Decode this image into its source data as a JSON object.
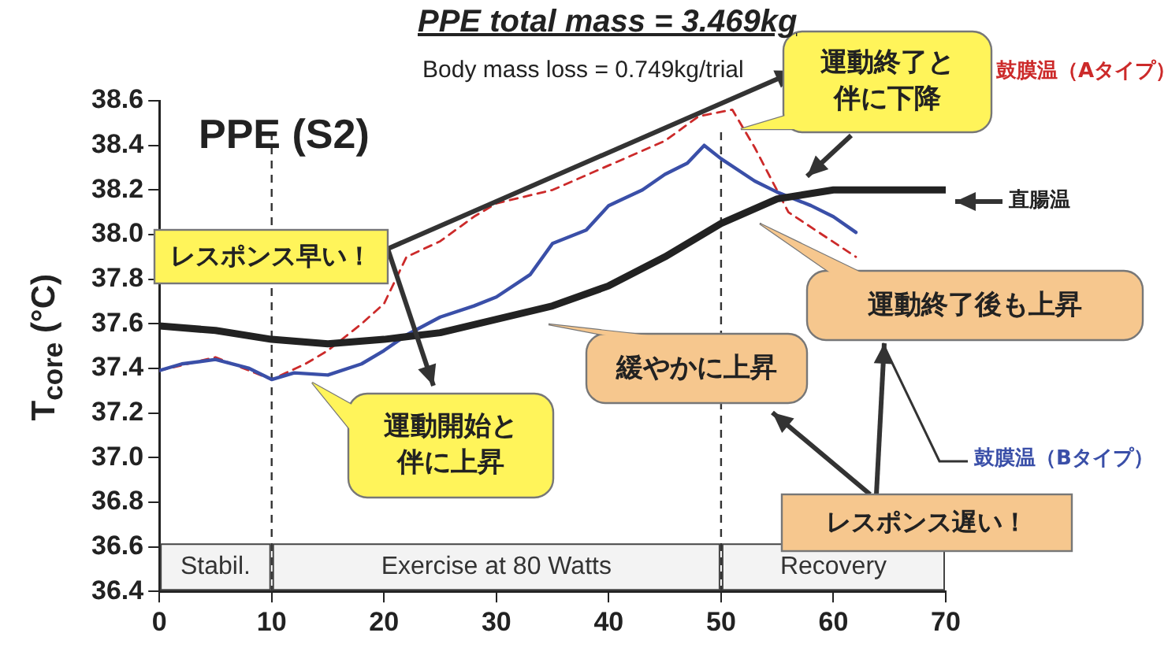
{
  "chart_data": {
    "type": "line",
    "title": "PPE total mass = 3.469kg",
    "subtitle": "Body mass loss = 0.749kg/trial",
    "ylabel": "T$_{core}$ (°C)",
    "xlim": [
      0,
      70
    ],
    "xticks": [
      0,
      10,
      20,
      30,
      40,
      50,
      60,
      70
    ],
    "ylim": [
      36.4,
      38.6
    ],
    "yticks": [
      36.4,
      36.6,
      36.8,
      {
        "value": 37,
        "label": "37.0"
      },
      37.2,
      37.4,
      37.6,
      37.8,
      {
        "value": 38,
        "label": "38.0"
      },
      38.2,
      38.4,
      38.6
    ],
    "grid": false,
    "legend": false,
    "marker": "none",
    "series": [
      {
        "name": "直腸温",
        "color": "#222222",
        "line_style": "solid",
        "x": [
          0,
          5,
          10,
          15,
          20,
          25,
          30,
          35,
          40,
          45,
          50,
          55,
          60,
          65,
          70
        ],
        "values": [
          37.59,
          37.57,
          37.53,
          37.51,
          37.53,
          37.56,
          37.62,
          37.68,
          37.77,
          37.9,
          38.05,
          38.16,
          38.2,
          38.2,
          38.2
        ]
      },
      {
        "name": "鼓膜温（Bタイプ）",
        "color": "#3a4fa8",
        "line_style": "solid",
        "x": [
          0,
          2,
          5,
          8,
          10,
          12,
          15,
          18,
          20,
          22,
          25,
          28,
          30,
          33,
          35,
          38,
          40,
          43,
          45,
          47,
          48.5,
          50,
          53,
          55,
          58,
          60,
          62
        ],
        "values": [
          37.39,
          37.42,
          37.44,
          37.4,
          37.35,
          37.38,
          37.37,
          37.42,
          37.48,
          37.55,
          37.63,
          37.68,
          37.72,
          37.82,
          37.96,
          38.02,
          38.13,
          38.2,
          38.27,
          38.32,
          38.4,
          38.34,
          38.24,
          38.19,
          38.13,
          38.08,
          38.01
        ]
      },
      {
        "name": "鼓膜温（Aタイプ）",
        "color": "#cc2a2a",
        "line_style": "dashed",
        "x": [
          0,
          5,
          10,
          13,
          15,
          18,
          20,
          22,
          25,
          28,
          30,
          35,
          40,
          45,
          48,
          51,
          53,
          56,
          59,
          62
        ],
        "values": [
          37.39,
          37.45,
          37.35,
          37.42,
          37.48,
          37.6,
          37.69,
          37.9,
          37.97,
          38.08,
          38.14,
          38.2,
          38.31,
          38.42,
          38.53,
          38.56,
          38.39,
          38.1,
          38.0,
          37.9
        ]
      }
    ],
    "ref_lines": [
      {
        "axis": "x",
        "value": 10,
        "line_style": "dashed"
      },
      {
        "axis": "x",
        "value": 50,
        "line_style": "dashed"
      }
    ],
    "bands": [
      {
        "axis": "x",
        "from": 0,
        "to": 10,
        "label": "Stabil.",
        "color": "#f3f3f3"
      },
      {
        "axis": "x",
        "from": 10,
        "to": 50,
        "label": "Exercise at 80 Watts",
        "color": "#f3f3f3"
      },
      {
        "axis": "x",
        "from": 50,
        "to": 70,
        "label": "Recovery",
        "color": "#f3f3f3"
      }
    ],
    "annotations": [
      "PPE (S2)",
      "運動終了と伴に下降",
      "レスポンス早い！",
      "運動終了後も上昇",
      "緩やかに上昇",
      "運動開始と伴に上昇",
      "レスポンス遅い！"
    ]
  }
}
